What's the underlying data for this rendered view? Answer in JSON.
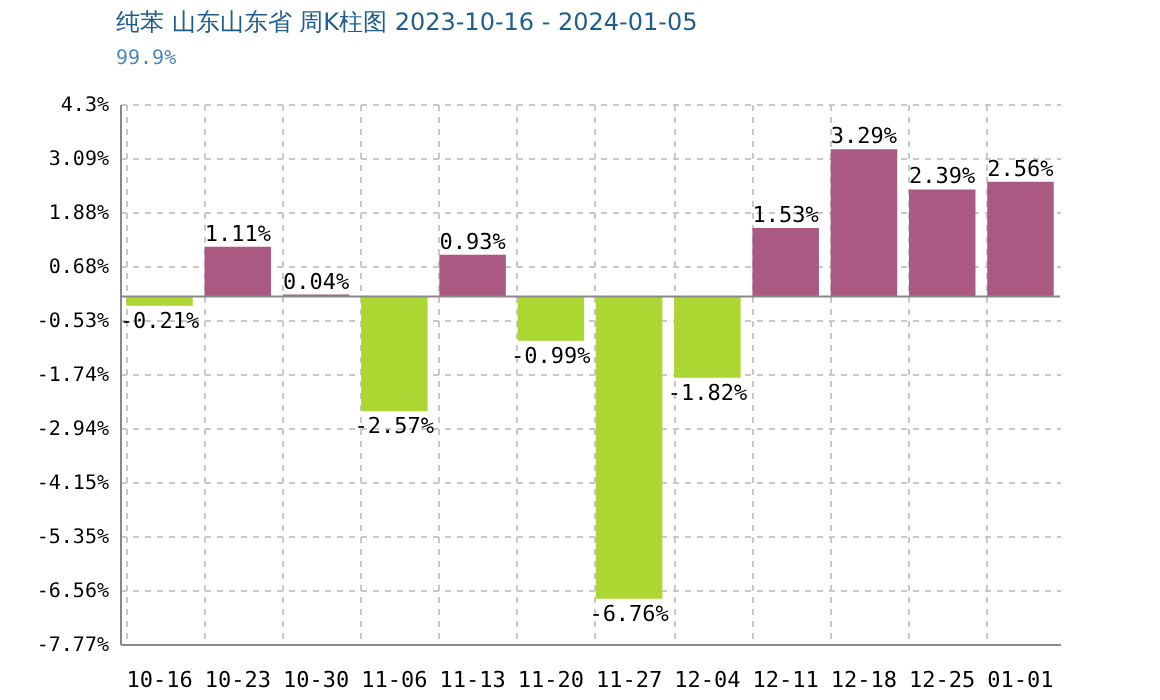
{
  "chart_data": {
    "type": "bar",
    "title": "纯苯 山东山东省 周K柱图 2023-10-16 - 2024-01-05",
    "subtitle": "99.9%",
    "categories": [
      "10-16",
      "10-23",
      "10-30",
      "11-06",
      "11-13",
      "11-20",
      "11-27",
      "12-04",
      "12-11",
      "12-18",
      "12-25",
      "01-01"
    ],
    "values": [
      -0.21,
      1.11,
      0.04,
      -2.57,
      0.93,
      -0.99,
      -6.76,
      -1.82,
      1.53,
      3.29,
      2.39,
      2.56
    ],
    "colors": [
      "#acd632",
      "#aa5a82",
      "#aa5a82",
      "#acd632",
      "#aa5a82",
      "#acd632",
      "#acd632",
      "#acd632",
      "#aa5a82",
      "#aa5a82",
      "#aa5a82",
      "#aa5a82"
    ],
    "value_labels": [
      "-0.21%",
      "1.11%",
      "0.04%",
      "-2.57%",
      "0.93%",
      "-0.99%",
      "-6.76%",
      "-1.82%",
      "1.53%",
      "3.29%",
      "2.39%",
      "2.56%"
    ],
    "ylim": [
      -7.77,
      4.3
    ],
    "yticks": [
      {
        "value": 4.3,
        "label": "4.3%"
      },
      {
        "value": 3.09,
        "label": "3.09%"
      },
      {
        "value": 1.88,
        "label": "1.88%"
      },
      {
        "value": 0.68,
        "label": "0.68%"
      },
      {
        "value": -0.53,
        "label": "-0.53%"
      },
      {
        "value": -1.74,
        "label": "-1.74%"
      },
      {
        "value": -2.94,
        "label": "-2.94%"
      },
      {
        "value": -4.15,
        "label": "-4.15%"
      },
      {
        "value": -5.35,
        "label": "-5.35%"
      },
      {
        "value": -6.56,
        "label": "-6.56%"
      },
      {
        "value": -7.77,
        "label": "-7.77%"
      }
    ],
    "ref_lines": [
      {
        "axis": "y",
        "value": 0,
        "color": "#888888"
      }
    ],
    "grid": true
  }
}
